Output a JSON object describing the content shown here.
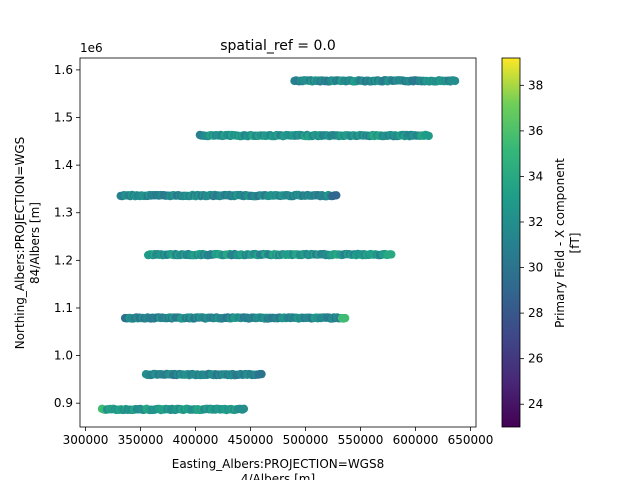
{
  "chart_data": {
    "type": "scatter",
    "title": "spatial_ref = 0.0",
    "xlabel_lines": [
      "Easting_Albers:PROJECTION=WGS8",
      "4/Albers [m]"
    ],
    "ylabel_lines": [
      "Northing_Albers:PROJECTION=WGS",
      "84/Albers [m]"
    ],
    "xlim": [
      295000,
      655000
    ],
    "ylim": [
      850000,
      1625000
    ],
    "y_offset_label": "1e6",
    "x_ticks": [
      300000,
      350000,
      400000,
      450000,
      500000,
      550000,
      600000,
      650000
    ],
    "x_tick_labels": [
      "300000",
      "350000",
      "400000",
      "450000",
      "500000",
      "550000",
      "600000",
      "650000"
    ],
    "y_ticks": [
      900000,
      1000000,
      1100000,
      1200000,
      1300000,
      1400000,
      1500000,
      1600000
    ],
    "y_tick_labels": [
      "0.9",
      "1.0",
      "1.1",
      "1.2",
      "1.3",
      "1.4",
      "1.5",
      "1.6"
    ],
    "grid": false,
    "colorbar": {
      "label_lines": [
        "Primary Field - X component",
        "[fT]"
      ],
      "range": [
        23,
        39.2
      ],
      "colormap": "viridis",
      "ticks": [
        24,
        26,
        28,
        30,
        32,
        34,
        36,
        38
      ],
      "tick_labels": [
        "24",
        "26",
        "28",
        "30",
        "32",
        "34",
        "36",
        "38"
      ]
    },
    "flight_lines": [
      {
        "y": 1577000,
        "x_start": 490000,
        "x_end": 636000,
        "value_range": [
          30,
          33.5
        ],
        "end_values": [
          31,
          32
        ]
      },
      {
        "y": 1462000,
        "x_start": 404000,
        "x_end": 612000,
        "value_range": [
          31,
          34
        ],
        "end_values": [
          31,
          33
        ]
      },
      {
        "y": 1336000,
        "x_start": 332000,
        "x_end": 528000,
        "value_range": [
          30,
          33
        ],
        "end_values": [
          31,
          29
        ]
      },
      {
        "y": 1212000,
        "x_start": 357000,
        "x_end": 578000,
        "value_range": [
          30.5,
          34
        ],
        "end_values": [
          33,
          34
        ]
      },
      {
        "y": 1079000,
        "x_start": 336000,
        "x_end": 536000,
        "value_range": [
          30,
          33
        ],
        "end_values": [
          30,
          35.5
        ]
      },
      {
        "y": 960000,
        "x_start": 355000,
        "x_end": 460000,
        "value_range": [
          30,
          32.5
        ],
        "end_values": [
          32,
          30
        ]
      },
      {
        "y": 887000,
        "x_start": 315000,
        "x_end": 444000,
        "value_range": [
          31.5,
          34
        ],
        "end_values": [
          35.5,
          32
        ]
      }
    ]
  }
}
